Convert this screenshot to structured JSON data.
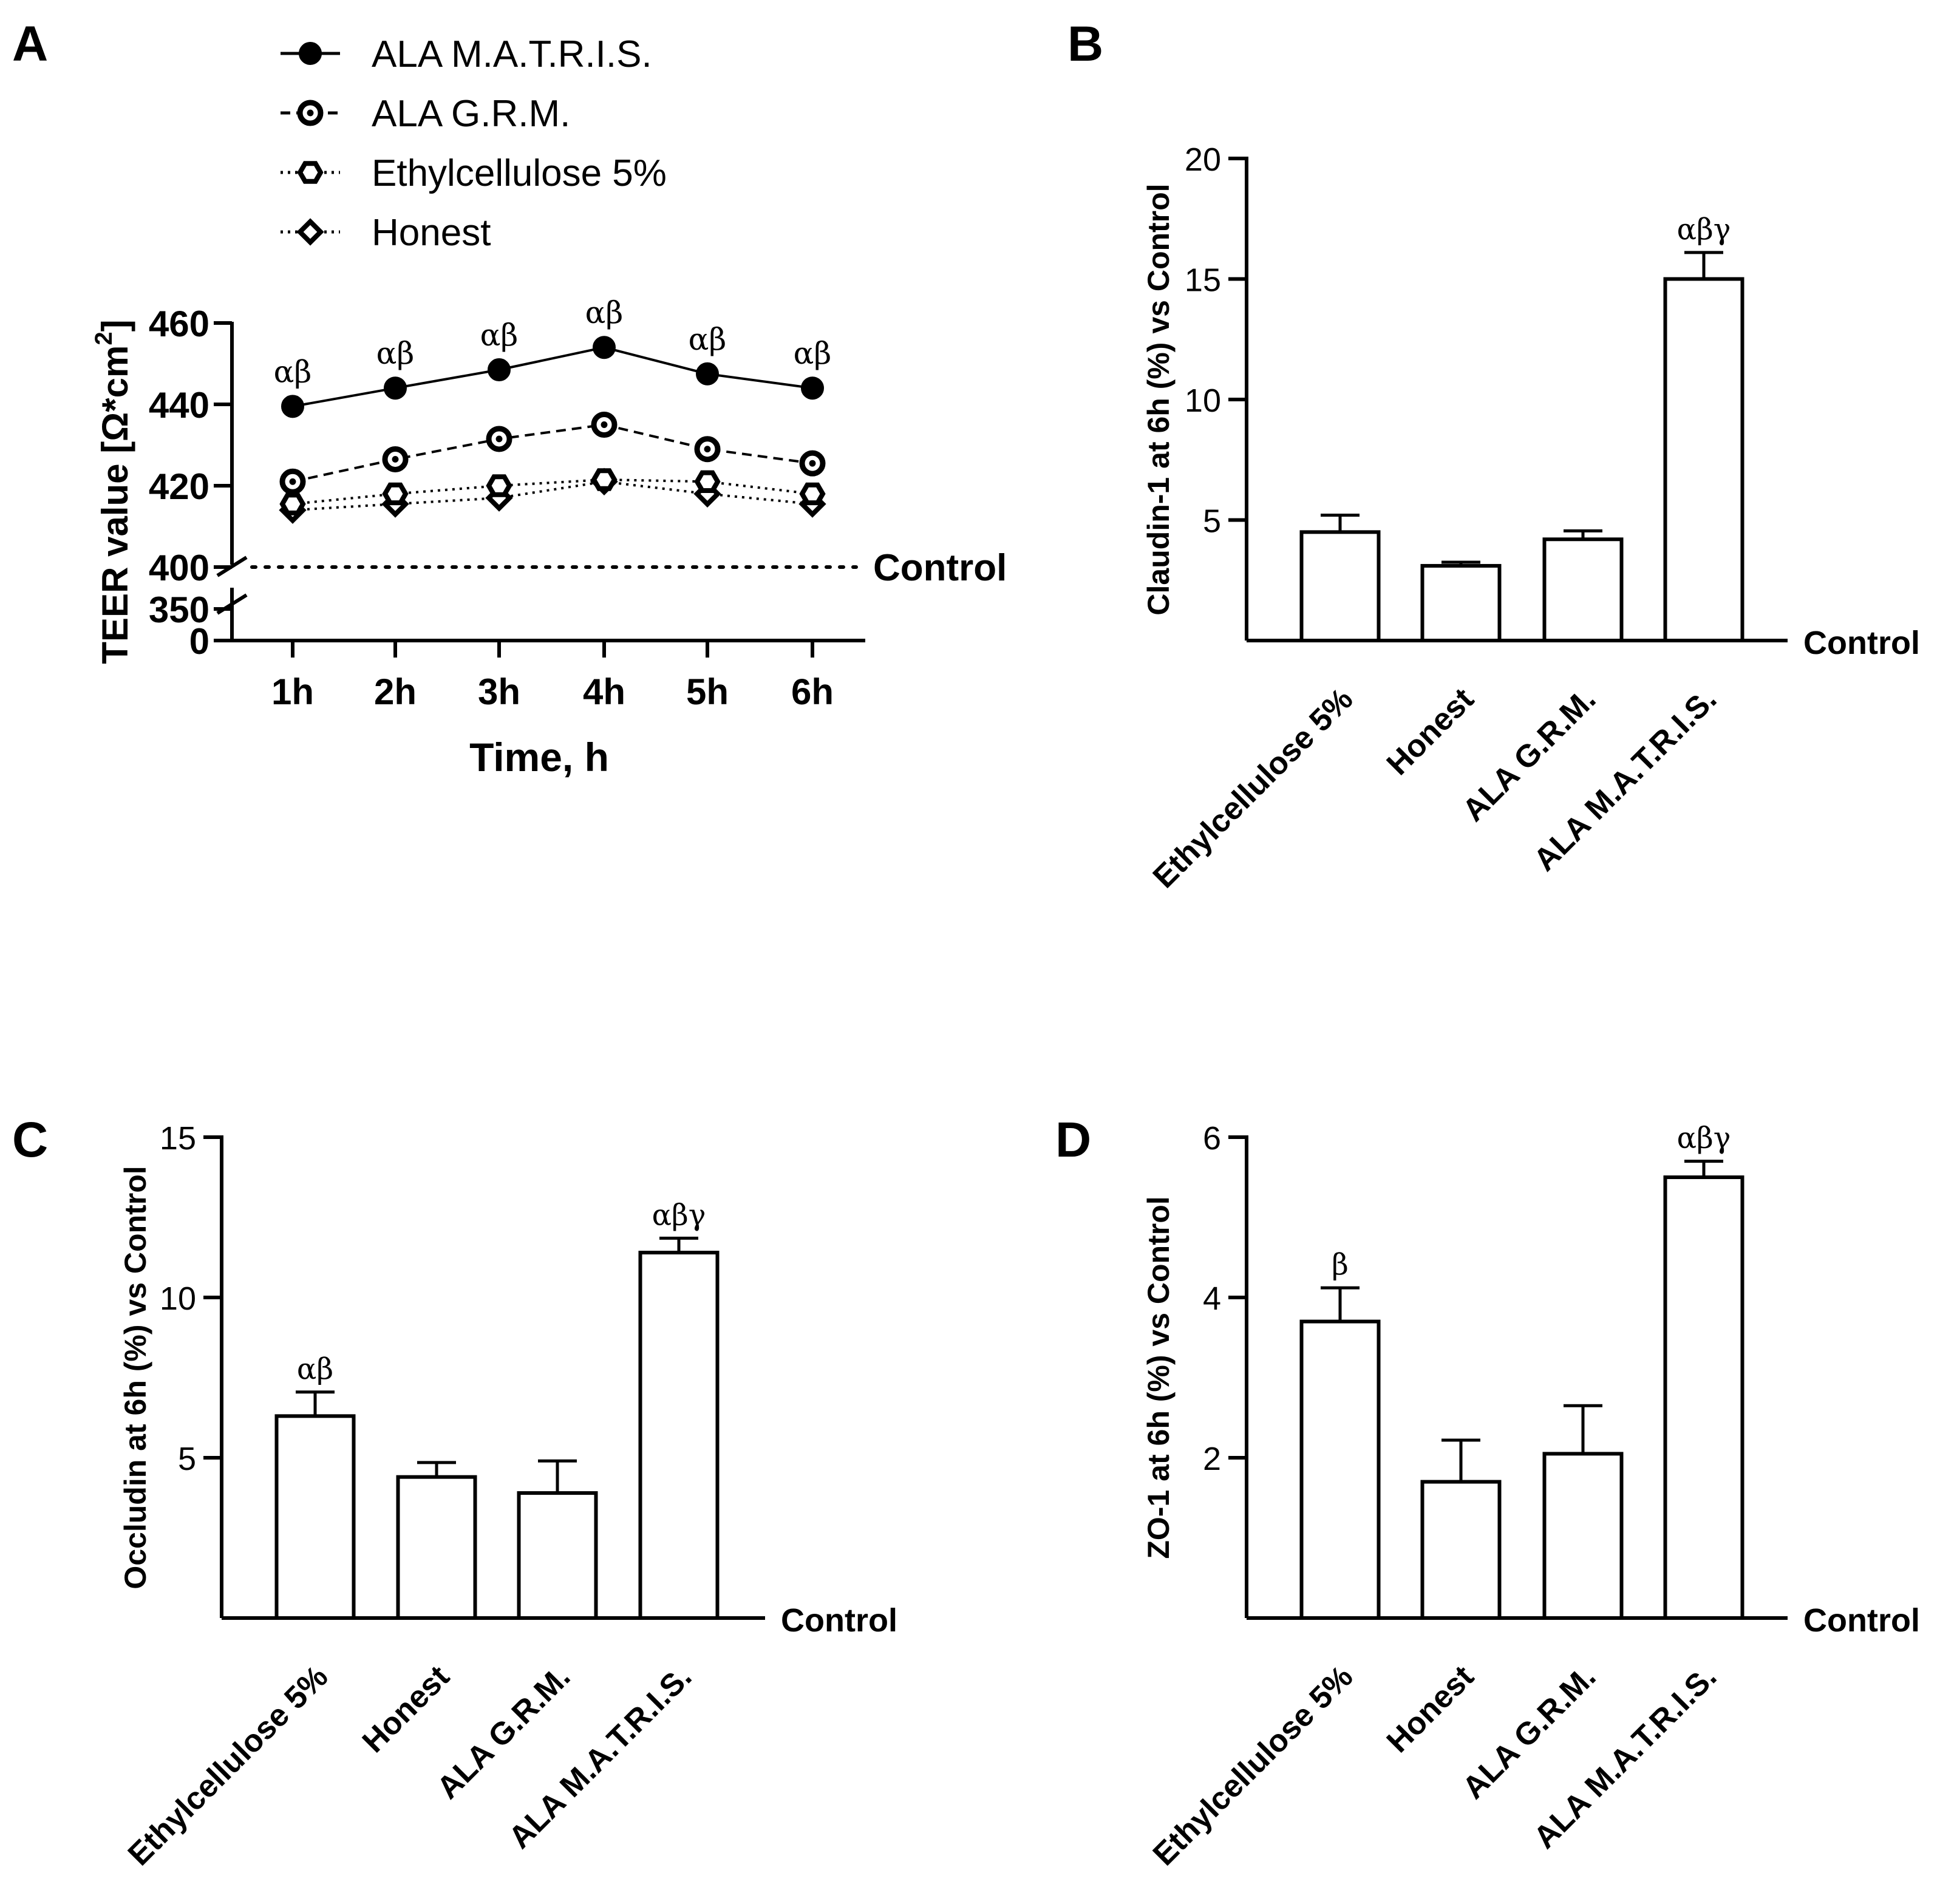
{
  "chart_data": [
    {
      "panel": "A",
      "type": "line",
      "categories": [
        "1h",
        "2h",
        "3h",
        "4h",
        "5h",
        "6h"
      ],
      "xlabel": "Time, h",
      "ylabel": "TEER value [Ω*cm",
      "ylabel_sup": "2",
      "ylabel_end": "]",
      "yticks_upper": [
        400,
        420,
        440,
        460
      ],
      "yticks_lower": [
        0,
        350
      ],
      "ylim_upper": [
        400,
        460
      ],
      "control_label": "Control",
      "control_value": 400,
      "series": [
        {
          "name": "ALA M.A.T.R.I.S.",
          "marker": "filled-circle",
          "line": "solid",
          "values": [
            439.5,
            444,
            448.5,
            454,
            447.5,
            444
          ],
          "annotations": [
            "αβ",
            "αβ",
            "αβ",
            "αβ",
            "αβ",
            "αβ"
          ]
        },
        {
          "name": "ALA G.R.M.",
          "marker": "open-circle",
          "line": "dashed",
          "values": [
            421,
            426.5,
            431.5,
            435,
            429,
            425.5
          ]
        },
        {
          "name": "Ethylcellulose 5%",
          "marker": "hexagon",
          "line": "dotted",
          "values": [
            415.5,
            418,
            420,
            421.5,
            421,
            418
          ]
        },
        {
          "name": "Honest",
          "marker": "diamond",
          "line": "dotted",
          "values": [
            414,
            415.5,
            417,
            421,
            418,
            415.5
          ]
        }
      ]
    },
    {
      "panel": "B",
      "type": "bar",
      "categories": [
        "Ethylcellulose 5%",
        "Honest",
        "ALA G.R.M.",
        "ALA M.A.T.R.I.S."
      ],
      "values": [
        4.5,
        3.1,
        4.2,
        15.0
      ],
      "errors": [
        0.7,
        0.15,
        0.35,
        1.1
      ],
      "annotations": [
        "",
        "",
        "",
        "αβγ"
      ],
      "ylabel": "Claudin-1 at 6h (%) vs Control",
      "ylim": [
        0,
        20
      ],
      "yticks": [
        5,
        10,
        15,
        20
      ],
      "control_label": "Control"
    },
    {
      "panel": "C",
      "type": "bar",
      "categories": [
        "Ethylcellulose 5%",
        "Honest",
        "ALA G.R.M.",
        "ALA M.A.T.R.I.S."
      ],
      "values": [
        6.3,
        4.4,
        3.9,
        11.4
      ],
      "errors": [
        0.75,
        0.45,
        1.0,
        0.45
      ],
      "annotations": [
        "αβ",
        "",
        "",
        "αβγ"
      ],
      "ylabel": "Occludin at 6h (%) vs Control",
      "ylim": [
        0,
        15
      ],
      "yticks": [
        5,
        10,
        15
      ],
      "control_label": "Control"
    },
    {
      "panel": "D",
      "type": "bar",
      "categories": [
        "Ethylcellulose 5%",
        "Honest",
        "ALA G.R.M.",
        "ALA M.A.T.R.I.S."
      ],
      "values": [
        3.7,
        1.7,
        2.05,
        5.5
      ],
      "errors": [
        0.42,
        0.52,
        0.6,
        0.2
      ],
      "annotations": [
        "β",
        "",
        "",
        "αβγ"
      ],
      "ylabel": "ZO-1 at 6h (%) vs Control",
      "ylim": [
        0,
        6
      ],
      "yticks": [
        2,
        4,
        6
      ],
      "control_label": "Control"
    }
  ]
}
